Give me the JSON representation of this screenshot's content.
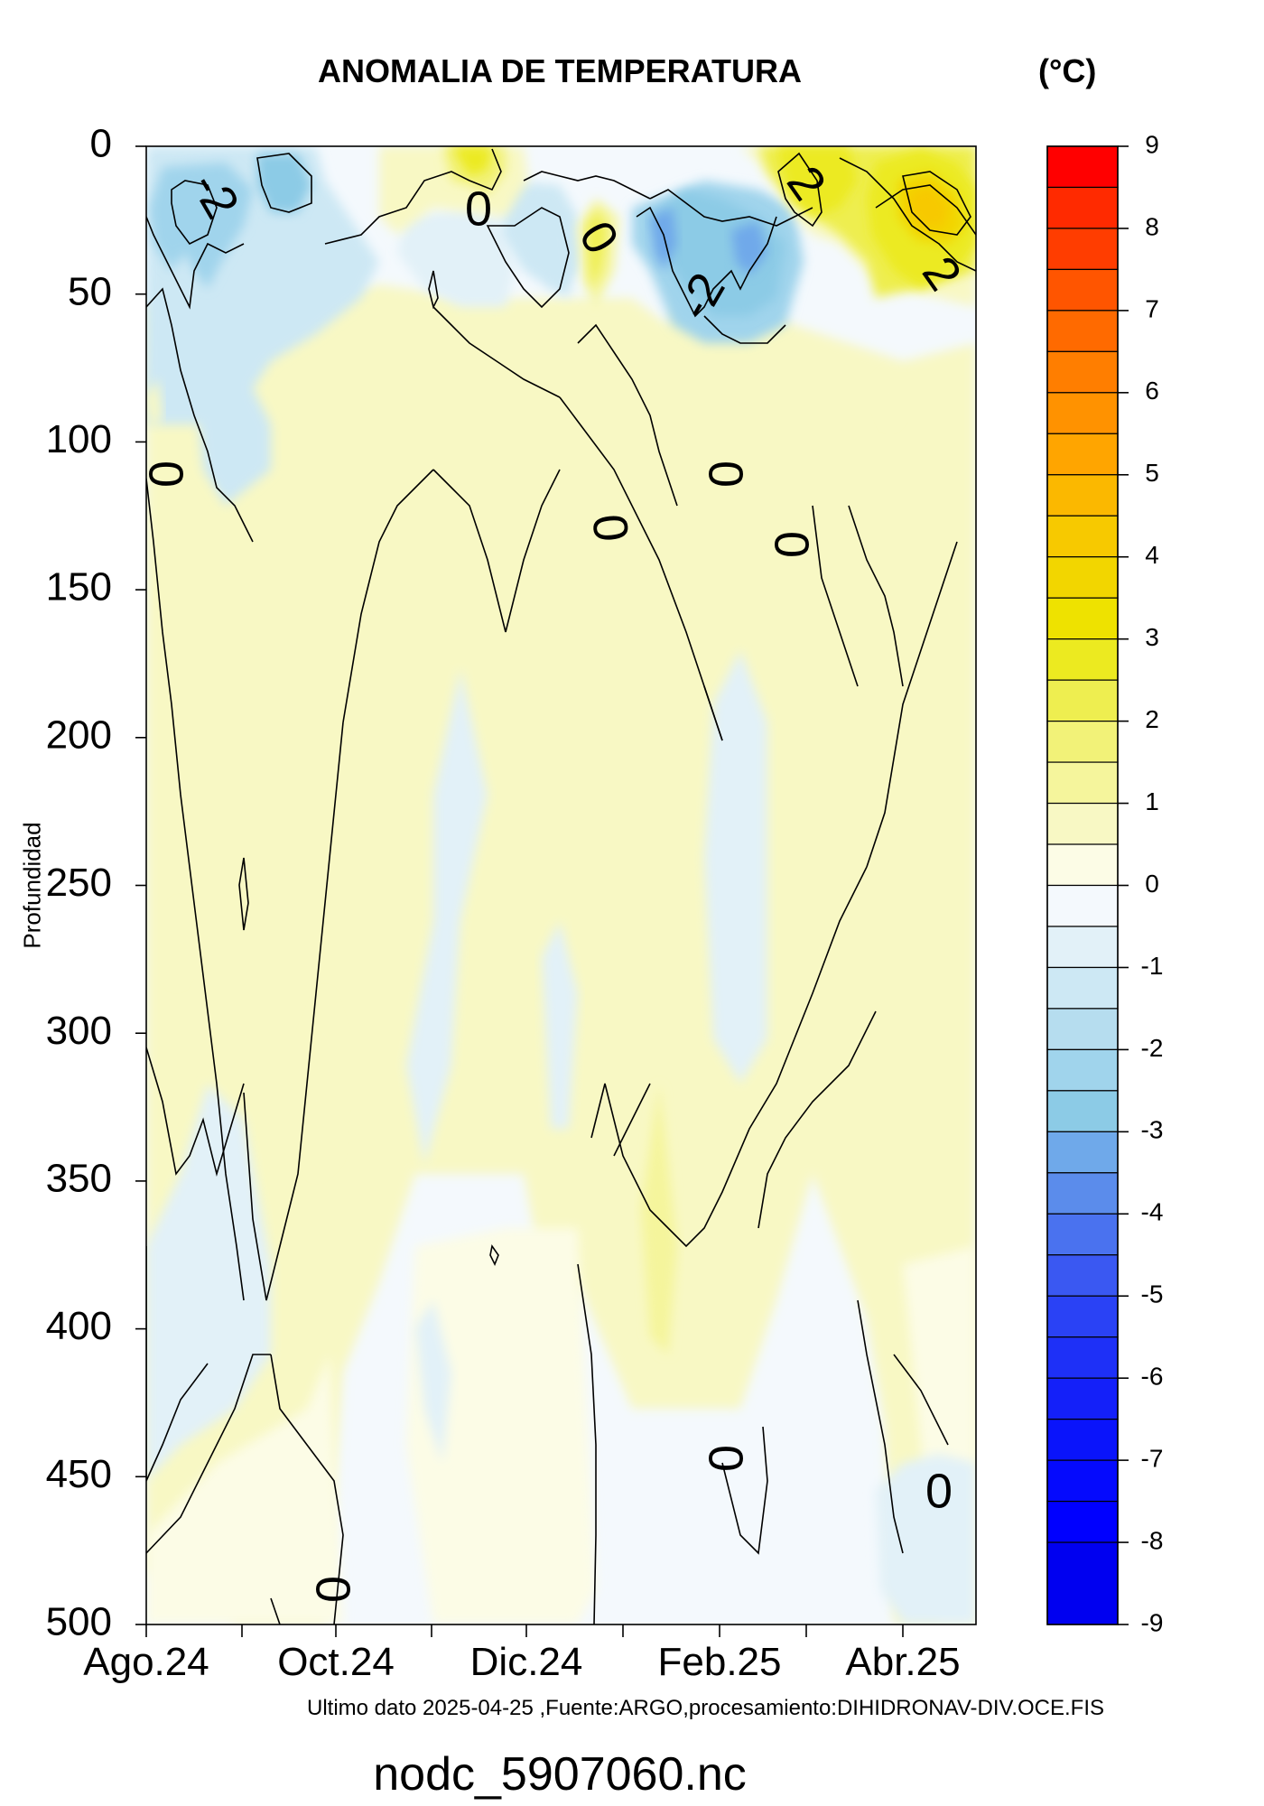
{
  "chart_data": {
    "type": "heatmap",
    "title": "ANOMALIA DE TEMPERATURA",
    "colorbar_unit": "(°C)",
    "ylabel": "Profundidad",
    "xlabel": "",
    "x_ticks": [
      "Ago.24",
      "Oct.24",
      "Dic.24",
      "Feb.25",
      "Abr.25"
    ],
    "y_ticks": [
      0,
      50,
      100,
      150,
      200,
      250,
      300,
      350,
      400,
      450,
      500
    ],
    "ylim": [
      500,
      0
    ],
    "y_inverted": true,
    "colorbar_ticks": [
      9,
      8,
      7,
      6,
      5,
      4,
      3,
      2,
      1,
      0,
      -1,
      -2,
      -3,
      -4,
      -5,
      -6,
      -7,
      -8,
      -9
    ],
    "colorbar_range": [
      -9,
      9
    ],
    "colorbar_levels": [
      {
        "from": 8.5,
        "to": 9.0,
        "color": "#ff0000"
      },
      {
        "from": 8.0,
        "to": 8.5,
        "color": "#ff2a00"
      },
      {
        "from": 7.5,
        "to": 8.0,
        "color": "#ff3d00"
      },
      {
        "from": 7.0,
        "to": 7.5,
        "color": "#ff5500"
      },
      {
        "from": 6.5,
        "to": 7.0,
        "color": "#ff6a00"
      },
      {
        "from": 6.0,
        "to": 6.5,
        "color": "#ff7e00"
      },
      {
        "from": 5.5,
        "to": 6.0,
        "color": "#ff9200"
      },
      {
        "from": 5.0,
        "to": 5.5,
        "color": "#ffa500"
      },
      {
        "from": 4.5,
        "to": 5.0,
        "color": "#fbb800"
      },
      {
        "from": 4.0,
        "to": 4.5,
        "color": "#f7c900"
      },
      {
        "from": 3.5,
        "to": 4.0,
        "color": "#f2d600"
      },
      {
        "from": 3.0,
        "to": 3.5,
        "color": "#eee200"
      },
      {
        "from": 2.5,
        "to": 3.0,
        "color": "#ecea20"
      },
      {
        "from": 2.0,
        "to": 2.5,
        "color": "#eeee50"
      },
      {
        "from": 1.5,
        "to": 2.0,
        "color": "#f2f278"
      },
      {
        "from": 1.0,
        "to": 1.5,
        "color": "#f5f59c"
      },
      {
        "from": 0.5,
        "to": 1.0,
        "color": "#f8f8c4"
      },
      {
        "from": 0.0,
        "to": 0.5,
        "color": "#fcfce6"
      },
      {
        "from": -0.5,
        "to": 0.0,
        "color": "#f4f9fd"
      },
      {
        "from": -1.0,
        "to": -0.5,
        "color": "#e2f1f8"
      },
      {
        "from": -1.5,
        "to": -1.0,
        "color": "#cde8f4"
      },
      {
        "from": -2.0,
        "to": -1.5,
        "color": "#b6ddef"
      },
      {
        "from": -2.5,
        "to": -2.0,
        "color": "#a0d4ec"
      },
      {
        "from": -3.0,
        "to": -2.5,
        "color": "#8ccbe6"
      },
      {
        "from": -3.5,
        "to": -3.0,
        "color": "#6fa9ea"
      },
      {
        "from": -4.0,
        "to": -3.5,
        "color": "#5b8ceb"
      },
      {
        "from": -4.5,
        "to": -4.0,
        "color": "#4a72ef"
      },
      {
        "from": -5.0,
        "to": -4.5,
        "color": "#3a58f2"
      },
      {
        "from": -5.5,
        "to": -5.0,
        "color": "#2a42f5"
      },
      {
        "from": -6.0,
        "to": -5.5,
        "color": "#1e30f7"
      },
      {
        "from": -6.5,
        "to": -6.0,
        "color": "#1420f9"
      },
      {
        "from": -7.0,
        "to": -6.5,
        "color": "#0a14fb"
      },
      {
        "from": -7.5,
        "to": -7.0,
        "color": "#050afd"
      },
      {
        "from": -8.0,
        "to": -7.5,
        "color": "#0000ff"
      },
      {
        "from": -9.0,
        "to": -8.0,
        "color": "#0000f0"
      }
    ],
    "contour_labels": [
      "-2",
      "0",
      "0",
      "-2",
      "2",
      "2",
      "0",
      "0",
      "0",
      "0",
      "0",
      "0"
    ]
  },
  "footer": "Ultimo dato 2025-04-25 ,Fuente:ARGO,procesamiento:DIHIDRONAV-DIV.OCE.FIS",
  "filename": "nodc_5907060.nc"
}
